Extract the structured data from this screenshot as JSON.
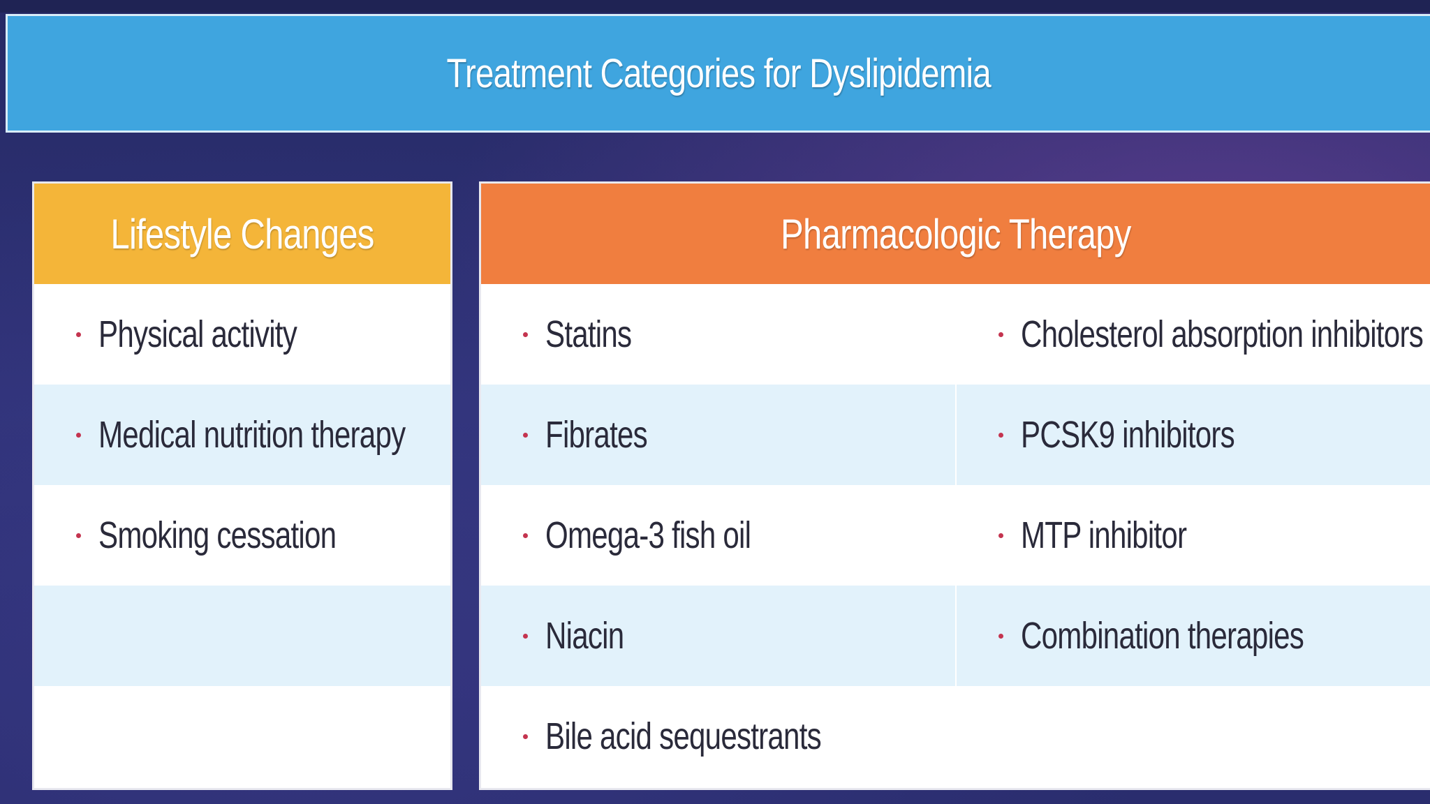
{
  "title": "Treatment Categories for Dyslipidemia",
  "lifestyle": {
    "header": "Lifestyle Changes",
    "items": [
      "Physical activity",
      "Medical nutrition therapy",
      "Smoking cessation"
    ]
  },
  "pharmacologic": {
    "header": "Pharmacologic Therapy",
    "left_column": [
      "Statins",
      "Fibrates",
      "Omega-3 fish oil",
      "Niacin",
      "Bile acid sequestrants"
    ],
    "right_column": [
      "Cholesterol absorption inhibitors",
      "PCSK9 inhibitors",
      "MTP inhibitor",
      "Combination therapies"
    ]
  },
  "colors": {
    "title_bar": "#3fa5df",
    "lifestyle_header": "#f4b539",
    "pharmacologic_header": "#f07e3f",
    "alt_row": "#e2f2fb",
    "bullet": "#c4344f"
  }
}
